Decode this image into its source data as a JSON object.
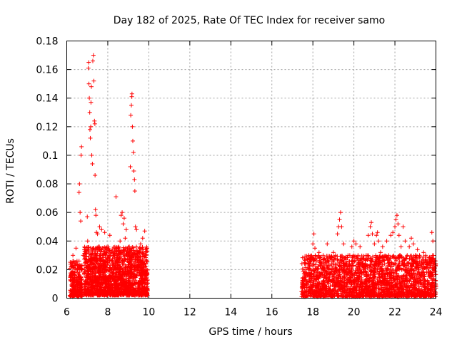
{
  "chart_data": {
    "type": "scatter",
    "title": "Day 182 of 2025, Rate Of TEC Index for receiver samo",
    "xlabel": "GPS time / hours",
    "ylabel": "ROTI / TECUs",
    "xlim": [
      6,
      24
    ],
    "ylim": [
      0,
      0.18
    ],
    "xticks": [
      6,
      8,
      10,
      12,
      14,
      16,
      18,
      20,
      22,
      24
    ],
    "xtick_labels": [
      "6",
      "8",
      "10",
      "12",
      "14",
      "16",
      "18",
      "20",
      "22",
      "24"
    ],
    "yticks": [
      0,
      0.02,
      0.04,
      0.06,
      0.08,
      0.1,
      0.12,
      0.14,
      0.16,
      0.18
    ],
    "ytick_labels": [
      "0",
      "0.02",
      "0.04",
      "0.06",
      "0.08",
      "0.1",
      "0.12",
      "0.14",
      "0.16",
      "0.18"
    ],
    "grid": true,
    "marker": "+",
    "color": "#ff0000",
    "series": [
      {
        "name": "ROTI",
        "points": [
          [
            6.2,
            0.012
          ],
          [
            6.25,
            0.022
          ],
          [
            6.3,
            0.03
          ],
          [
            6.35,
            0.008
          ],
          [
            6.4,
            0.018
          ],
          [
            6.45,
            0.035
          ],
          [
            6.5,
            0.026
          ],
          [
            6.55,
            0.014
          ],
          [
            6.6,
            0.074
          ],
          [
            6.62,
            0.08
          ],
          [
            6.65,
            0.06
          ],
          [
            6.68,
            0.054
          ],
          [
            6.7,
            0.1
          ],
          [
            6.72,
            0.106
          ],
          [
            6.75,
            0.02
          ],
          [
            6.8,
            0.03
          ],
          [
            6.9,
            0.025
          ],
          [
            6.95,
            0.015
          ],
          [
            7.0,
            0.057
          ],
          [
            7.02,
            0.04
          ],
          [
            7.05,
            0.161
          ],
          [
            7.07,
            0.165
          ],
          [
            7.08,
            0.15
          ],
          [
            7.1,
            0.14
          ],
          [
            7.12,
            0.13
          ],
          [
            7.13,
            0.118
          ],
          [
            7.15,
            0.112
          ],
          [
            7.17,
            0.12
          ],
          [
            7.18,
            0.137
          ],
          [
            7.2,
            0.148
          ],
          [
            7.22,
            0.1
          ],
          [
            7.25,
            0.094
          ],
          [
            7.27,
            0.166
          ],
          [
            7.3,
            0.17
          ],
          [
            7.32,
            0.152
          ],
          [
            7.35,
            0.124
          ],
          [
            7.37,
            0.122
          ],
          [
            7.38,
            0.086
          ],
          [
            7.4,
            0.062
          ],
          [
            7.42,
            0.058
          ],
          [
            7.45,
            0.046
          ],
          [
            7.5,
            0.045
          ],
          [
            7.55,
            0.036
          ],
          [
            7.6,
            0.05
          ],
          [
            7.65,
            0.03
          ],
          [
            7.7,
            0.048
          ],
          [
            7.8,
            0.022
          ],
          [
            7.85,
            0.046
          ],
          [
            7.9,
            0.035
          ],
          [
            8.0,
            0.025
          ],
          [
            8.05,
            0.03
          ],
          [
            8.1,
            0.044
          ],
          [
            8.2,
            0.018
          ],
          [
            8.3,
            0.03
          ],
          [
            8.4,
            0.071
          ],
          [
            8.5,
            0.035
          ],
          [
            8.6,
            0.04
          ],
          [
            8.65,
            0.058
          ],
          [
            8.7,
            0.06
          ],
          [
            8.75,
            0.052
          ],
          [
            8.8,
            0.056
          ],
          [
            8.85,
            0.042
          ],
          [
            8.9,
            0.048
          ],
          [
            9.0,
            0.03
          ],
          [
            9.05,
            0.036
          ],
          [
            9.1,
            0.092
          ],
          [
            9.12,
            0.128
          ],
          [
            9.15,
            0.135
          ],
          [
            9.17,
            0.141
          ],
          [
            9.18,
            0.143
          ],
          [
            9.2,
            0.12
          ],
          [
            9.22,
            0.11
          ],
          [
            9.25,
            0.102
          ],
          [
            9.27,
            0.089
          ],
          [
            9.3,
            0.083
          ],
          [
            9.32,
            0.075
          ],
          [
            9.35,
            0.05
          ],
          [
            9.4,
            0.048
          ],
          [
            9.5,
            0.025
          ],
          [
            9.6,
            0.038
          ],
          [
            9.7,
            0.042
          ],
          [
            9.8,
            0.047
          ],
          [
            9.85,
            0.03
          ],
          [
            9.9,
            0.02
          ],
          [
            17.5,
            0.014
          ],
          [
            17.6,
            0.025
          ],
          [
            17.7,
            0.01
          ],
          [
            17.8,
            0.03
          ],
          [
            17.9,
            0.02
          ],
          [
            18.0,
            0.038
          ],
          [
            18.05,
            0.045
          ],
          [
            18.1,
            0.035
          ],
          [
            18.2,
            0.028
          ],
          [
            18.3,
            0.032
          ],
          [
            18.4,
            0.018
          ],
          [
            18.5,
            0.03
          ],
          [
            18.6,
            0.025
          ],
          [
            18.7,
            0.038
          ],
          [
            18.8,
            0.015
          ],
          [
            18.9,
            0.02
          ],
          [
            19.0,
            0.032
          ],
          [
            19.1,
            0.03
          ],
          [
            19.2,
            0.045
          ],
          [
            19.25,
            0.05
          ],
          [
            19.3,
            0.055
          ],
          [
            19.35,
            0.06
          ],
          [
            19.4,
            0.05
          ],
          [
            19.5,
            0.038
          ],
          [
            19.6,
            0.028
          ],
          [
            19.7,
            0.022
          ],
          [
            19.8,
            0.03
          ],
          [
            19.9,
            0.036
          ],
          [
            20.0,
            0.04
          ],
          [
            20.1,
            0.038
          ],
          [
            20.2,
            0.03
          ],
          [
            20.3,
            0.036
          ],
          [
            20.4,
            0.026
          ],
          [
            20.5,
            0.022
          ],
          [
            20.6,
            0.03
          ],
          [
            20.7,
            0.044
          ],
          [
            20.8,
            0.05
          ],
          [
            20.85,
            0.053
          ],
          [
            20.9,
            0.045
          ],
          [
            21.0,
            0.038
          ],
          [
            21.1,
            0.044
          ],
          [
            21.15,
            0.046
          ],
          [
            21.2,
            0.04
          ],
          [
            21.3,
            0.032
          ],
          [
            21.4,
            0.036
          ],
          [
            21.5,
            0.024
          ],
          [
            21.6,
            0.04
          ],
          [
            21.7,
            0.03
          ],
          [
            21.8,
            0.044
          ],
          [
            21.9,
            0.046
          ],
          [
            22.0,
            0.05
          ],
          [
            22.05,
            0.055
          ],
          [
            22.1,
            0.058
          ],
          [
            22.15,
            0.052
          ],
          [
            22.2,
            0.044
          ],
          [
            22.3,
            0.036
          ],
          [
            22.4,
            0.05
          ],
          [
            22.5,
            0.04
          ],
          [
            22.6,
            0.03
          ],
          [
            22.7,
            0.036
          ],
          [
            22.8,
            0.042
          ],
          [
            22.9,
            0.038
          ],
          [
            23.0,
            0.03
          ],
          [
            23.1,
            0.034
          ],
          [
            23.2,
            0.03
          ],
          [
            23.3,
            0.026
          ],
          [
            23.4,
            0.032
          ],
          [
            23.5,
            0.03
          ],
          [
            23.6,
            0.024
          ],
          [
            23.7,
            0.028
          ],
          [
            23.8,
            0.046
          ],
          [
            23.85,
            0.04
          ],
          [
            23.9,
            0.02
          ]
        ],
        "dense_bands": [
          {
            "x_range": [
              6.15,
              6.75
            ],
            "y_range": [
              0.001,
              0.026
            ],
            "count": 260
          },
          {
            "x_range": [
              6.85,
              9.95
            ],
            "y_range": [
              0.002,
              0.036
            ],
            "count": 1700
          },
          {
            "x_range": [
              17.45,
              24.0
            ],
            "y_range": [
              0.001,
              0.03
            ],
            "count": 2300
          }
        ]
      }
    ]
  }
}
